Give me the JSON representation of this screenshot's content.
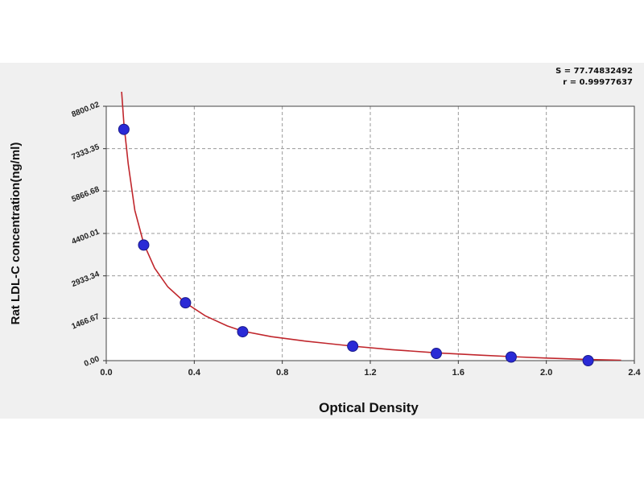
{
  "chart_data": {
    "type": "scatter",
    "title": "",
    "xlabel": "Optical Density",
    "ylabel": "Rat LDL-C concentration(ng/ml)",
    "xlim": [
      0.0,
      2.4
    ],
    "ylim": [
      0.0,
      8800.02
    ],
    "x_ticks": [
      "0.0",
      "0.4",
      "0.8",
      "1.2",
      "1.6",
      "2.0",
      "2.4"
    ],
    "y_ticks": [
      "0.00",
      "1466.67",
      "2933.34",
      "4400.01",
      "5866.68",
      "7333.35",
      "8800.02"
    ],
    "grid": true,
    "series": [
      {
        "points": [
          {
            "x": 0.08,
            "y": 8000
          },
          {
            "x": 0.17,
            "y": 4000
          },
          {
            "x": 0.36,
            "y": 2000
          },
          {
            "x": 0.62,
            "y": 1000
          },
          {
            "x": 1.12,
            "y": 500
          },
          {
            "x": 1.5,
            "y": 250
          },
          {
            "x": 1.84,
            "y": 125
          },
          {
            "x": 2.19,
            "y": 0
          }
        ],
        "color": "#2a2ad6"
      }
    ],
    "fit_curve": {
      "color": "#c0262c",
      "points": [
        {
          "x": 0.07,
          "y": 9300
        },
        {
          "x": 0.08,
          "y": 8200
        },
        {
          "x": 0.1,
          "y": 6800
        },
        {
          "x": 0.13,
          "y": 5200
        },
        {
          "x": 0.17,
          "y": 4050
        },
        {
          "x": 0.22,
          "y": 3200
        },
        {
          "x": 0.28,
          "y": 2550
        },
        {
          "x": 0.36,
          "y": 2000
        },
        {
          "x": 0.45,
          "y": 1550
        },
        {
          "x": 0.55,
          "y": 1200
        },
        {
          "x": 0.62,
          "y": 1020
        },
        {
          "x": 0.75,
          "y": 830
        },
        {
          "x": 0.9,
          "y": 680
        },
        {
          "x": 1.0,
          "y": 600
        },
        {
          "x": 1.12,
          "y": 500
        },
        {
          "x": 1.3,
          "y": 380
        },
        {
          "x": 1.5,
          "y": 270
        },
        {
          "x": 1.7,
          "y": 190
        },
        {
          "x": 1.84,
          "y": 140
        },
        {
          "x": 2.0,
          "y": 90
        },
        {
          "x": 2.19,
          "y": 40
        },
        {
          "x": 2.34,
          "y": 15
        }
      ]
    },
    "annotations": [
      "S = 77.74832492",
      "r = 0.99977637"
    ]
  }
}
